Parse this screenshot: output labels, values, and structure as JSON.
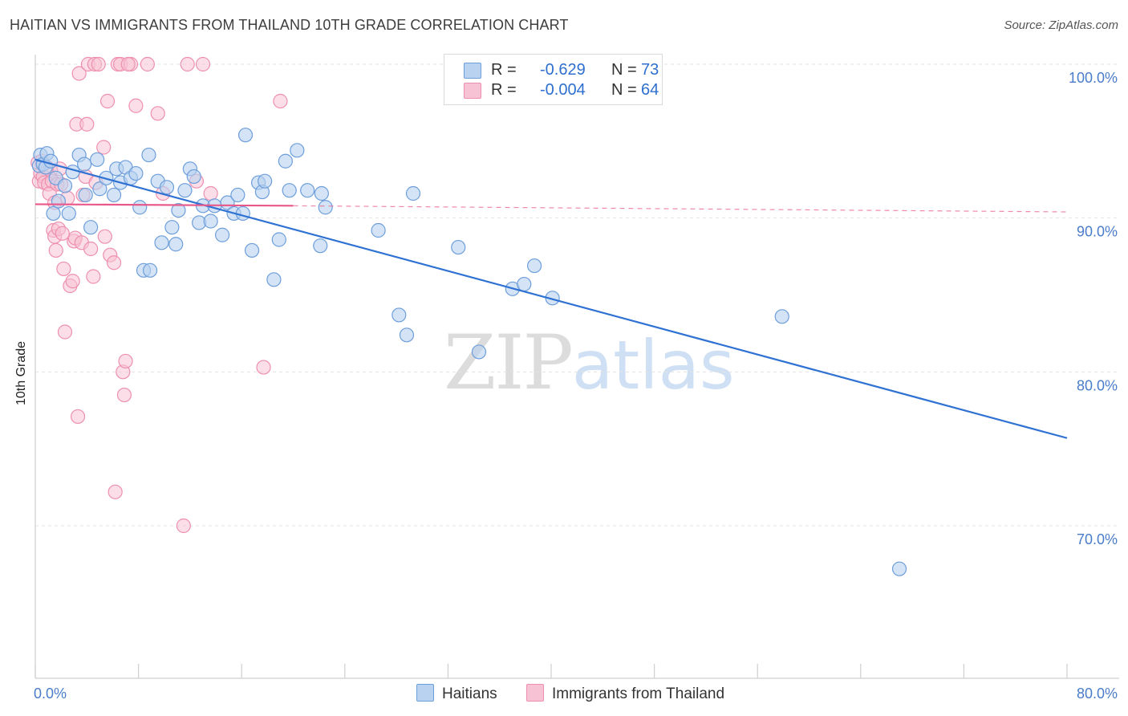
{
  "title": "HAITIAN VS IMMIGRANTS FROM THAILAND 10TH GRADE CORRELATION CHART",
  "source": "Source: ZipAtlas.com",
  "watermark": {
    "zip": "ZIP",
    "atlas": "atlas"
  },
  "legend": {
    "rows": [
      {
        "r_label": "R =",
        "r_value": "-0.629",
        "n_label": "N =",
        "n_value": "73"
      },
      {
        "r_label": "R =",
        "r_value": "-0.004",
        "n_label": "N =",
        "n_value": "64"
      }
    ]
  },
  "bottom_legend": {
    "haitians": "Haitians",
    "thailand": "Immigrants from Thailand"
  },
  "colors": {
    "haitians_fill": "#b8d2f0",
    "haitians_stroke": "#6d9edb",
    "haitians_line": "#2f72d3",
    "thailand_fill": "#f7c3d4",
    "thailand_stroke": "#ee8fb0",
    "thailand_line": "#e8588a",
    "tick_label": "#4a7cc9",
    "grid": "#e3e3e3"
  },
  "chart_data": {
    "type": "scatter",
    "title": "HAITIAN VS IMMIGRANTS FROM THAILAND 10TH GRADE CORRELATION CHART",
    "xlabel": "",
    "ylabel": "10th Grade",
    "xlim": [
      0,
      80
    ],
    "ylim": [
      60,
      100
    ],
    "x_tick_labels": [
      "0.0%",
      "80.0%"
    ],
    "y_ticks": [
      70,
      80,
      90,
      100
    ],
    "y_tick_labels": [
      "70.0%",
      "80.0%",
      "90.0%",
      "100.0%"
    ],
    "grid": true,
    "series": [
      {
        "name": "Haitians",
        "r": -0.629,
        "n": 73,
        "trend": {
          "x": [
            0,
            80
          ],
          "y": [
            93.8,
            75.7
          ]
        },
        "points": [
          [
            0.3,
            93.4
          ],
          [
            0.4,
            94.1
          ],
          [
            0.6,
            93.5
          ],
          [
            0.8,
            93.3
          ],
          [
            0.9,
            94.2
          ],
          [
            1.2,
            93.7
          ],
          [
            1.4,
            90.3
          ],
          [
            1.6,
            92.6
          ],
          [
            1.8,
            91.1
          ],
          [
            2.3,
            92.1
          ],
          [
            2.6,
            90.3
          ],
          [
            2.9,
            93.0
          ],
          [
            3.4,
            94.1
          ],
          [
            3.8,
            93.5
          ],
          [
            3.9,
            91.5
          ],
          [
            4.3,
            89.4
          ],
          [
            4.8,
            93.8
          ],
          [
            5.0,
            91.9
          ],
          [
            5.5,
            92.6
          ],
          [
            6.1,
            91.5
          ],
          [
            6.3,
            93.2
          ],
          [
            6.6,
            92.3
          ],
          [
            7.0,
            93.3
          ],
          [
            7.4,
            92.6
          ],
          [
            7.8,
            92.9
          ],
          [
            8.1,
            90.7
          ],
          [
            8.4,
            86.6
          ],
          [
            8.8,
            94.1
          ],
          [
            8.9,
            86.6
          ],
          [
            9.5,
            92.4
          ],
          [
            9.8,
            88.4
          ],
          [
            10.2,
            92.0
          ],
          [
            10.6,
            89.4
          ],
          [
            10.9,
            88.3
          ],
          [
            11.1,
            90.5
          ],
          [
            11.6,
            91.8
          ],
          [
            12.0,
            93.2
          ],
          [
            12.3,
            92.7
          ],
          [
            12.7,
            89.7
          ],
          [
            13.0,
            90.8
          ],
          [
            13.6,
            89.8
          ],
          [
            13.9,
            90.8
          ],
          [
            14.5,
            88.9
          ],
          [
            14.9,
            91.0
          ],
          [
            15.4,
            90.3
          ],
          [
            15.7,
            91.5
          ],
          [
            16.1,
            90.3
          ],
          [
            16.3,
            95.4
          ],
          [
            16.8,
            87.9
          ],
          [
            17.3,
            92.3
          ],
          [
            17.6,
            91.7
          ],
          [
            17.8,
            92.4
          ],
          [
            18.5,
            86.0
          ],
          [
            18.9,
            88.6
          ],
          [
            19.4,
            93.7
          ],
          [
            19.7,
            91.8
          ],
          [
            20.3,
            94.4
          ],
          [
            21.1,
            91.8
          ],
          [
            22.1,
            88.2
          ],
          [
            22.2,
            91.6
          ],
          [
            22.5,
            90.7
          ],
          [
            26.6,
            89.2
          ],
          [
            28.2,
            83.7
          ],
          [
            28.8,
            82.4
          ],
          [
            29.3,
            91.6
          ],
          [
            32.8,
            88.1
          ],
          [
            34.4,
            81.3
          ],
          [
            37.0,
            85.4
          ],
          [
            37.9,
            85.7
          ],
          [
            38.7,
            86.9
          ],
          [
            40.1,
            84.8
          ],
          [
            57.9,
            83.6
          ],
          [
            67.0,
            67.2
          ]
        ]
      },
      {
        "name": "Immigrants from Thailand",
        "r": -0.004,
        "n": 64,
        "trend": {
          "x": [
            0,
            20
          ],
          "y": [
            90.9,
            90.8
          ]
        },
        "trend_dashed": {
          "x": [
            20,
            80
          ],
          "y": [
            90.8,
            90.4
          ]
        },
        "points": [
          [
            0.2,
            93.6
          ],
          [
            0.3,
            92.4
          ],
          [
            0.4,
            92.9
          ],
          [
            0.6,
            92.7
          ],
          [
            0.7,
            92.3
          ],
          [
            0.9,
            93.3
          ],
          [
            1.0,
            92.2
          ],
          [
            1.1,
            91.6
          ],
          [
            1.2,
            93.1
          ],
          [
            1.3,
            92.4
          ],
          [
            1.4,
            89.2
          ],
          [
            1.5,
            88.8
          ],
          [
            1.6,
            87.9
          ],
          [
            1.7,
            92.2
          ],
          [
            1.8,
            89.3
          ],
          [
            1.9,
            93.2
          ],
          [
            2.0,
            92.2
          ],
          [
            2.1,
            89.0
          ],
          [
            2.2,
            86.7
          ],
          [
            2.3,
            82.6
          ],
          [
            2.7,
            85.6
          ],
          [
            2.9,
            85.9
          ],
          [
            3.0,
            88.5
          ],
          [
            3.1,
            88.7
          ],
          [
            3.2,
            96.1
          ],
          [
            3.3,
            77.1
          ],
          [
            3.4,
            99.4
          ],
          [
            3.6,
            88.4
          ],
          [
            3.7,
            91.5
          ],
          [
            3.9,
            92.7
          ],
          [
            4.0,
            96.1
          ],
          [
            4.1,
            100.0
          ],
          [
            4.3,
            88.0
          ],
          [
            4.5,
            86.2
          ],
          [
            4.6,
            100.0
          ],
          [
            4.7,
            92.3
          ],
          [
            4.9,
            100.0
          ],
          [
            5.3,
            94.6
          ],
          [
            5.4,
            88.8
          ],
          [
            5.6,
            97.6
          ],
          [
            5.8,
            87.6
          ],
          [
            6.1,
            87.1
          ],
          [
            6.2,
            72.2
          ],
          [
            6.4,
            100.0
          ],
          [
            6.6,
            100.0
          ],
          [
            6.8,
            80.0
          ],
          [
            6.9,
            78.5
          ],
          [
            7.0,
            80.7
          ],
          [
            7.4,
            100.0
          ],
          [
            7.8,
            97.3
          ],
          [
            8.7,
            100.0
          ],
          [
            9.5,
            96.8
          ],
          [
            9.9,
            91.6
          ],
          [
            11.5,
            70.0
          ],
          [
            11.8,
            100.0
          ],
          [
            12.5,
            92.4
          ],
          [
            13.0,
            100.0
          ],
          [
            13.6,
            91.6
          ],
          [
            17.7,
            80.3
          ],
          [
            19.0,
            97.6
          ],
          [
            7.2,
            100.0
          ],
          [
            0.5,
            93.7
          ],
          [
            1.5,
            91.0
          ],
          [
            2.5,
            91.3
          ]
        ]
      }
    ]
  }
}
